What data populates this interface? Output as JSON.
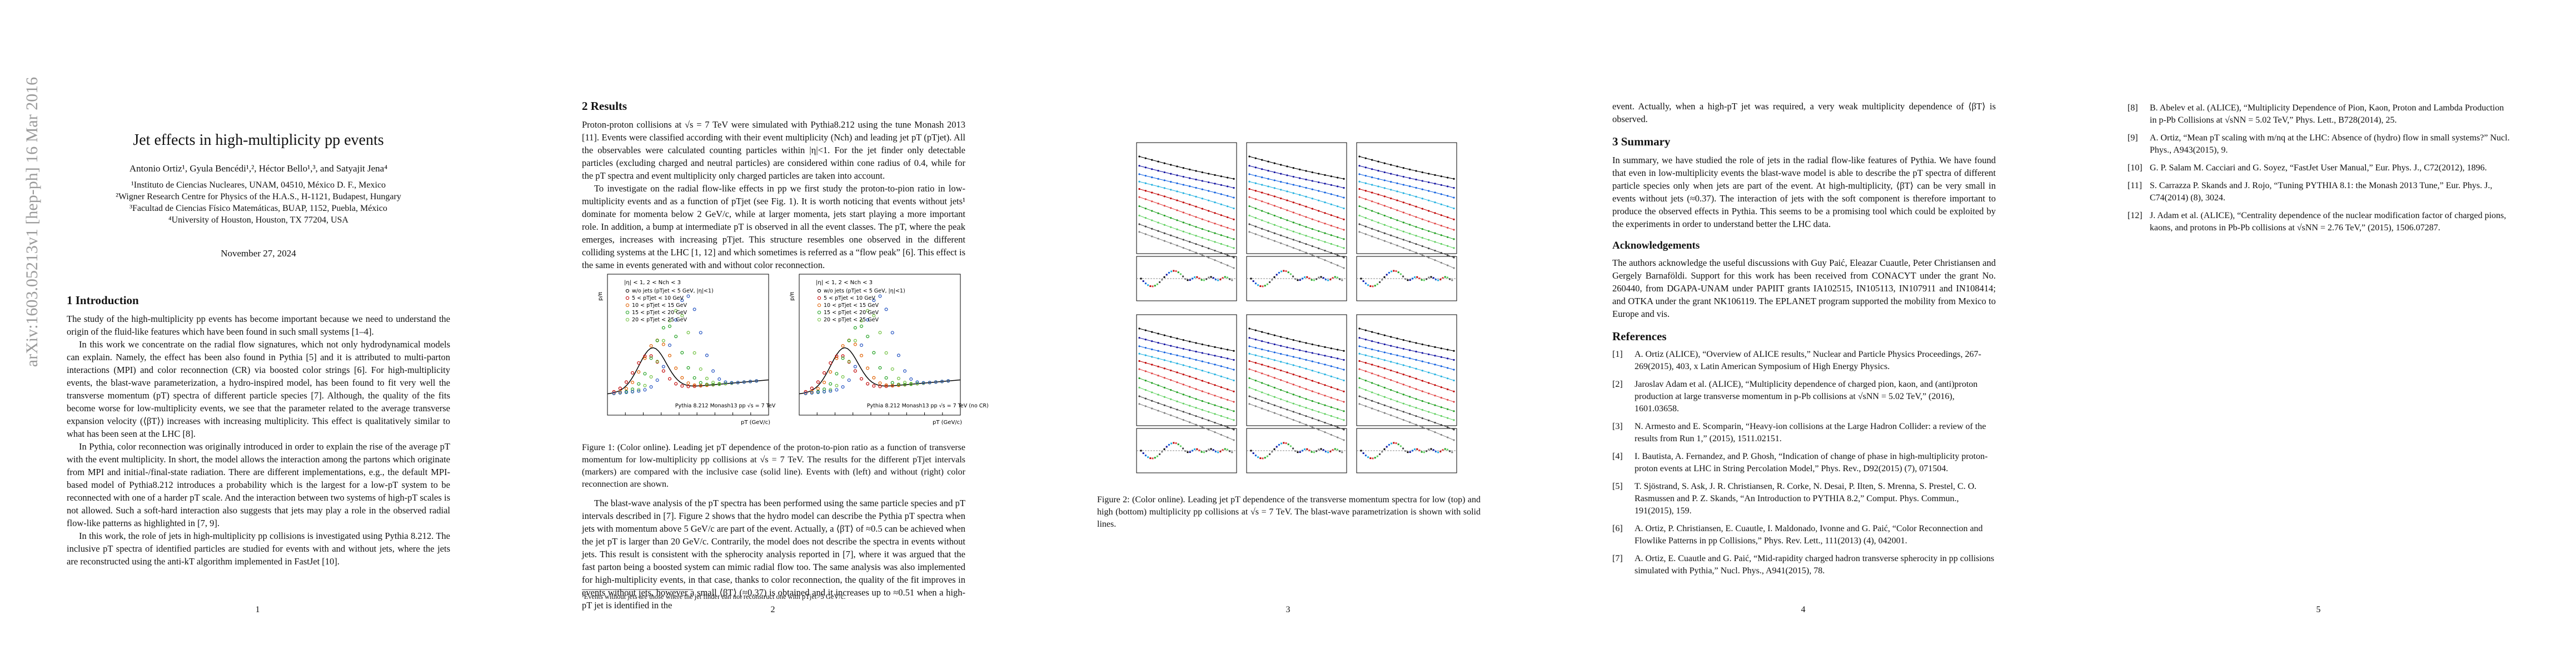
{
  "arxiv_stamp": "arXiv:1603.05213v1 [hep-ph] 16 Mar 2016",
  "page_1": {
    "title": "Jet effects in high-multiplicity pp events",
    "authors": "Antonio Ortiz¹, Gyula Bencédi¹,², Héctor Bello¹,³, and Satyajit Jena⁴",
    "affiliations": [
      "¹Instituto de Ciencias Nucleares, UNAM, 04510, México D. F., Mexico",
      "²Wigner Research Centre for Physics of the H.A.S., H-1121, Budapest, Hungary",
      "³Facultad de Ciencias Físico Matemáticas, BUAP, 1152, Puebla, México",
      "⁴University of Houston, Houston, TX 77204, USA"
    ],
    "date": "November 27, 2024",
    "heading": "1   Introduction",
    "paragraphs": [
      "The study of the high-multiplicity pp events has become important because we need to understand the origin of the fluid-like features which have been found in such small systems [1–4].",
      "In this work we concentrate on the radial flow signatures, which not only hydrodynamical models can explain. Namely, the effect has been also found in Pythia [5] and it is attributed to multi-parton interactions (MPI) and color reconnection (CR) via boosted color strings [6]. For high-multiplicity events, the blast-wave parameterization, a hydro-inspired model, has been found to fit very well the transverse momentum (pT) spectra of different particle species [7]. Although, the quality of the fits become worse for low-multiplicity events, we see that the parameter related to the average transverse expansion velocity (⟨βT⟩) increases with increasing multiplicity. This effect is qualitatively similar to what has been seen at the LHC [8].",
      "In Pythia, color reconnection was originally introduced in order to explain the rise of the average pT with the event multiplicity. In short, the model allows the interaction among the partons which originate from MPI and initial-/final-state radiation. There are different implementations, e.g., the default MPI-based model of Pythia8.212 introduces a probability which is the largest for a low-pT system to be reconnected with one of a harder pT scale. And the interaction between two systems of high-pT scales is not allowed. Such a soft-hard interaction also suggests that jets may play a role in the observed radial flow-like patterns as highlighted in [7, 9].",
      "In this work, the role of jets in high-multiplicity pp collisions is investigated using Pythia 8.212. The inclusive pT spectra of identified particles are studied for events with and without jets, where the jets are reconstructed using the anti-kT algorithm implemented in FastJet [10]."
    ],
    "page_number": "1"
  },
  "page_2": {
    "heading": "2   Results",
    "paragraphs": [
      "Proton-proton collisions at √s = 7 TeV were simulated with Pythia8.212 using the tune Monash 2013 [11]. Events were classified according with their event multiplicity (Nch) and leading jet pT (pTjet). All the observables were calculated counting particles within |η|<1. For the jet finder only detectable particles (excluding charged and neutral particles) are considered within cone radius of 0.4, while for the pT spectra and event multiplicity only charged particles are taken into account.",
      "To investigate on the radial flow-like effects in pp we first study the proton-to-pion ratio in low-multiplicity events and as a function of pTjet (see Fig. 1). It is worth noticing that events without jets¹ dominate for momenta below 2 GeV/c, while at larger momenta, jets start playing a more important role. In addition, a bump at intermediate pT is observed in all the event classes. The pT, where the peak emerges, increases with increasing pTjet. This structure resembles one observed in the different colliding systems at the LHC [1, 12] and which sometimes is referred as a “flow peak” [6]. This effect is the same in events generated with and without color reconnection."
    ],
    "figure_1": {
      "panels": [
        {
          "legend_title": "|η| < 1, 2 < Nch < 3",
          "legend": [
            "w/o jets (pTjet < 5 GeV, |η|<1)",
            "5 < pTjet < 10 GeV",
            "10 < pTjet < 15 GeV",
            "15 < pTjet < 20 GeV",
            "20 < pTjet < 25 GeV"
          ],
          "label": "Pythia 8.212 Monash13 pp √s = 7 TeV",
          "x_label": "pT (GeV/c)",
          "y_label": "p/π"
        },
        {
          "legend_title": "|η| < 1, 2 < Nch < 3",
          "legend": [
            "w/o jets (pTjet < 5 GeV, |η|<1)",
            "5 < pTjet < 10 GeV",
            "10 < pTjet < 15 GeV",
            "15 < pTjet < 20 GeV",
            "20 < pTjet < 25 GeV"
          ],
          "label": "Pythia 8.212 Monash13 pp √s = 7 TeV (no CR)",
          "x_label": "pT (GeV/c)",
          "y_label": "p/π"
        }
      ],
      "caption": "Figure 1: (Color online). Leading jet pT dependence of the proton-to-pion ratio as a function of transverse momentum for low-multiplicity pp collisions at √s = 7 TeV. The results for the different pTjet intervals (markers) are compared with the inclusive case (solid line). Events with (left) and without (right) color reconnection are shown."
    },
    "paragraph_after": "The blast-wave analysis of the pT spectra has been performed using the same particle species and pT intervals described in [7]. Figure 2 shows that the hydro model can describe the Pythia pT spectra when jets with momentum above 5 GeV/c are part of the event. Actually, a ⟨βT⟩ of ≈0.5 can be achieved when the jet pT is larger than 20 GeV/c. Contrarily, the model does not describe the spectra in events without jets. This result is consistent with the spherocity analysis reported in [7], where it was argued that the fast parton being a boosted system can mimic radial flow too. The same analysis was also implemented for high-multiplicity events, in that case, thanks to color reconnection, the quality of the fit improves in events without jets, however a small ⟨βT⟩ (≈0.37) is obtained and it increases up to ≈0.51 when a high-pT jet is identified in the",
    "footnote": "¹Events without jets are those where the jet finder can not reconstruct one with pTjet>5 GeV/c.",
    "page_number": "2"
  },
  "page_3": {
    "figure_2_caption": "Figure 2: (Color online). Leading jet pT dependence of the transverse momentum spectra for low (top) and high (bottom) multiplicity pp collisions at √s = 7 TeV. The blast-wave parametrization is shown with solid lines.",
    "page_number": "3"
  },
  "page_4": {
    "continuation": "event. Actually, when a high-pT jet was required, a very weak multiplicity dependence of ⟨βT⟩ is observed.",
    "summary_heading": "3   Summary",
    "summary": "In summary, we have studied the role of jets in the radial flow-like features of Pythia. We have found that even in low-multiplicity events the blast-wave model is able to describe the pT spectra of different particle species only when jets are part of the event. At high-multiplicity, ⟨βT⟩ can be very small in events without jets (≈0.37). The interaction of jets with the soft component is therefore important to produce the observed effects in Pythia. This seems to be a promising tool which could be exploited by the experiments in order to understand better the LHC data.",
    "ack_heading": "Acknowledgements",
    "ack": "The authors acknowledge the useful discussions with Guy Paić, Eleazar Cuautle, Peter Christiansen and Gergely Barnaföldi. Support for this work has been received from CONACYT under the grant No. 260440, from DGAPA-UNAM under PAPIIT grants IA102515, IN105113, IN107911 and IN108414; and OTKA under the grant NK106119. The EPLANET program supported the mobility from Mexico to Europe and vis.",
    "references_heading": "References",
    "references": [
      {
        "num": "[1]",
        "text": "A. Ortiz (ALICE), “Overview of ALICE results,” Nuclear and Particle Physics Proceedings, 267-269(2015), 403, x Latin American Symposium of High Energy Physics."
      },
      {
        "num": "[2]",
        "text": "Jaroslav Adam et al. (ALICE), “Multiplicity dependence of charged pion, kaon, and (anti)proton production at large transverse momentum in p-Pb collisions at √sNN = 5.02 TeV,” (2016), 1601.03658."
      },
      {
        "num": "[3]",
        "text": "N. Armesto and E. Scomparin, “Heavy-ion collisions at the Large Hadron Collider: a review of the results from Run 1,” (2015), 1511.02151."
      },
      {
        "num": "[4]",
        "text": "I. Bautista, A. Fernandez, and P. Ghosh, “Indication of change of phase in high-multiplicity proton-proton events at LHC in String Percolation Model,” Phys. Rev., D92(2015) (7), 071504."
      },
      {
        "num": "[5]",
        "text": "T. Sjöstrand, S. Ask, J. R. Christiansen, R. Corke, N. Desai, P. Ilten, S. Mrenna, S. Prestel, C. O. Rasmussen and P. Z. Skands, “An Introduction to PYTHIA 8.2,” Comput. Phys. Commun., 191(2015), 159."
      },
      {
        "num": "[6]",
        "text": "A. Ortiz, P. Christiansen, E. Cuautle, I. Maldonado, Ivonne and G. Paić, “Color Reconnection and Flowlike Patterns in pp Collisions,” Phys. Rev. Lett., 111(2013) (4), 042001."
      },
      {
        "num": "[7]",
        "text": "A. Ortiz, E. Cuautle and G. Paić, “Mid-rapidity charged hadron transverse spherocity in pp collisions simulated with Pythia,” Nucl. Phys., A941(2015), 78."
      }
    ],
    "page_number": "4"
  },
  "page_5": {
    "references": [
      {
        "num": "[8]",
        "text": "B. Abelev et al. (ALICE), “Multiplicity Dependence of Pion, Kaon, Proton and Lambda Production in p-Pb Collisions at √sNN = 5.02 TeV,” Phys. Lett., B728(2014), 25."
      },
      {
        "num": "[9]",
        "text": "A. Ortiz, “Mean pT scaling with m/nq at the LHC: Absence of (hydro) flow in small systems?” Nucl. Phys., A943(2015), 9."
      },
      {
        "num": "[10]",
        "text": "G. P. Salam M. Cacciari and G. Soyez, “FastJet User Manual,” Eur. Phys. J., C72(2012), 1896."
      },
      {
        "num": "[11]",
        "text": "S. Carrazza P. Skands and J. Rojo, “Tuning PYTHIA 8.1: the Monash 2013 Tune,” Eur. Phys. J., C74(2014) (8), 3024."
      },
      {
        "num": "[12]",
        "text": "J. Adam et al. (ALICE), “Centrality dependence of the nuclear modification factor of charged pions, kaons, and protons in Pb-Pb collisions at √sNN = 2.76 TeV,” (2015), 1506.07287."
      }
    ],
    "page_number": "5"
  }
}
